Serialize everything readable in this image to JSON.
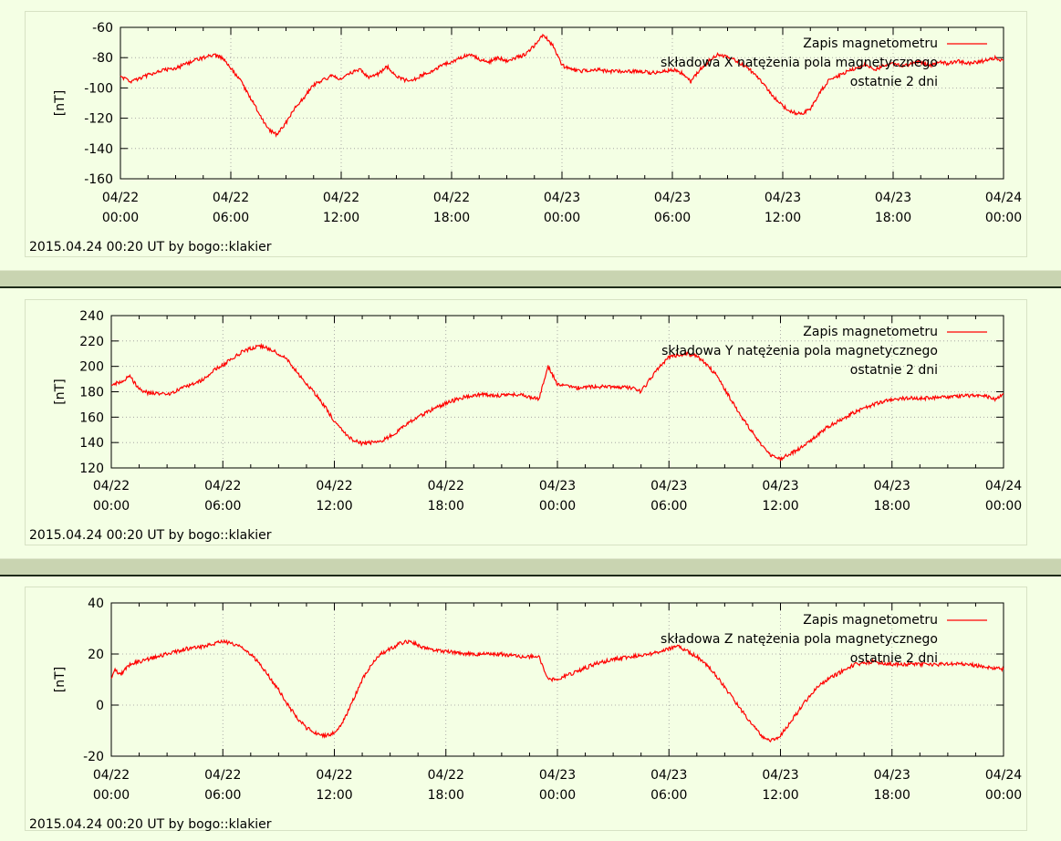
{
  "colors": {
    "background": "#f4ffe4",
    "series": "#ff0000",
    "grid": "#999999",
    "separator": "#c9d4b1"
  },
  "credit": "2015.04.24  00:20 UT  by  bogo::klakier",
  "x_tick_dates": [
    "04/22",
    "04/22",
    "04/22",
    "04/22",
    "04/23",
    "04/23",
    "04/23",
    "04/23",
    "04/24"
  ],
  "x_tick_times": [
    "00:00",
    "06:00",
    "12:00",
    "18:00",
    "00:00",
    "06:00",
    "12:00",
    "18:00",
    "00:00"
  ],
  "chart_data": [
    {
      "type": "line",
      "ylabel": "[nT]",
      "ylim": [
        -160,
        -60
      ],
      "yticks": [
        "-60",
        "-80",
        "-100",
        "-120",
        "-140",
        "-160"
      ],
      "legend": [
        "Zapis magnetometru",
        "składowa X natężenia pola magnetycznego",
        "ostatnie 2 dni"
      ],
      "series": [
        {
          "name": "Zapis magnetometru",
          "x": [
            0,
            0.5,
            1,
            2,
            3,
            4,
            4.5,
            5,
            5.5,
            6,
            6.5,
            7,
            7.5,
            8,
            8.5,
            9,
            9.5,
            10,
            10.5,
            11,
            11.5,
            12,
            12.5,
            13,
            13.5,
            14,
            14.5,
            15,
            15.5,
            16,
            16.5,
            17,
            17.5,
            18,
            18.5,
            19,
            19.5,
            20,
            20.5,
            21,
            21.5,
            22,
            22.5,
            23,
            23.5,
            24,
            24.5,
            25,
            25.5,
            26,
            26.5,
            27,
            27.5,
            28,
            29,
            30,
            30.5,
            31,
            31.5,
            32,
            32.5,
            33,
            33.5,
            34,
            34.5,
            35,
            35.5,
            36,
            36.5,
            37,
            37.5,
            38,
            38.5,
            39,
            39.5,
            40,
            40.5,
            41,
            41.5,
            42,
            42.5,
            43,
            43.5,
            44,
            44.5,
            45,
            45.5,
            46,
            46.5,
            47,
            47.5,
            48
          ],
          "y": [
            -92,
            -96,
            -94,
            -89,
            -87,
            -82,
            -80,
            -78,
            -80,
            -87,
            -95,
            -105,
            -116,
            -127,
            -131,
            -123,
            -113,
            -106,
            -98,
            -95,
            -92,
            -94,
            -90,
            -88,
            -93,
            -91,
            -86,
            -92,
            -95,
            -94,
            -91,
            -89,
            -85,
            -83,
            -80,
            -78,
            -81,
            -83,
            -80,
            -82,
            -80,
            -78,
            -72,
            -65,
            -72,
            -85,
            -88,
            -89,
            -88,
            -88,
            -89,
            -89,
            -89,
            -89,
            -90,
            -88,
            -90,
            -96,
            -88,
            -82,
            -78,
            -80,
            -82,
            -86,
            -91,
            -98,
            -106,
            -112,
            -116,
            -117,
            -114,
            -103,
            -95,
            -92,
            -89,
            -87,
            -84,
            -88,
            -85,
            -84,
            -86,
            -84,
            -83,
            -85,
            -83,
            -84,
            -82,
            -84,
            -83,
            -82,
            -80,
            -82
          ]
        }
      ]
    },
    {
      "type": "line",
      "ylabel": "[nT]",
      "ylim": [
        120,
        240
      ],
      "yticks": [
        "240",
        "220",
        "200",
        "180",
        "160",
        "140",
        "120"
      ],
      "legend": [
        "Zapis magnetometru",
        "składowa Y natężenia pola magnetycznego",
        "ostatnie 2 dni"
      ],
      "series": [
        {
          "name": "Zapis magnetometru",
          "x": [
            0,
            0.5,
            1,
            1.5,
            2,
            3,
            4,
            5,
            5.5,
            6,
            6.5,
            7,
            7.5,
            8,
            8.5,
            9,
            9.5,
            10,
            10.5,
            11,
            11.5,
            12,
            12.5,
            13,
            13.5,
            14,
            14.5,
            15,
            15.5,
            16,
            17,
            18,
            19,
            20,
            21,
            22,
            22.5,
            23,
            23.5,
            24,
            25,
            26,
            27,
            28,
            28.5,
            29,
            29.5,
            30,
            30.5,
            31,
            31.5,
            32,
            32.5,
            33,
            33.5,
            34,
            34.5,
            35,
            35.5,
            36,
            36.5,
            37,
            37.5,
            38,
            38.5,
            39,
            39.5,
            40,
            41,
            42,
            43,
            44,
            45,
            46,
            47,
            47.5,
            48
          ],
          "y": [
            185,
            188,
            192,
            182,
            179,
            178,
            184,
            190,
            197,
            201,
            206,
            211,
            214,
            216,
            214,
            210,
            205,
            195,
            186,
            178,
            168,
            157,
            148,
            142,
            139,
            140,
            141,
            145,
            150,
            156,
            164,
            171,
            176,
            178,
            177,
            178,
            176,
            174,
            200,
            186,
            183,
            184,
            184,
            183,
            180,
            190,
            200,
            207,
            209,
            210,
            208,
            202,
            194,
            182,
            170,
            158,
            148,
            138,
            130,
            127,
            131,
            135,
            140,
            146,
            152,
            156,
            160,
            164,
            170,
            174,
            175,
            175,
            176,
            177,
            177,
            174,
            178
          ]
        }
      ]
    },
    {
      "type": "line",
      "ylabel": "[nT]",
      "ylim": [
        -20,
        40
      ],
      "yticks": [
        "40",
        "20",
        "0",
        "-20"
      ],
      "legend": [
        "Zapis magnetometru",
        "składowa Z natężenia pola magnetycznego",
        "ostatnie 2 dni"
      ],
      "series": [
        {
          "name": "Zapis magnetometru",
          "x": [
            0,
            0.2,
            0.5,
            1,
            2,
            3,
            4,
            5,
            6,
            6.5,
            7,
            7.5,
            8,
            8.5,
            9,
            9.5,
            10,
            10.5,
            11,
            11.5,
            12,
            12.5,
            13,
            13.5,
            14,
            14.5,
            15,
            15.5,
            16,
            17,
            18,
            19,
            20,
            21,
            22,
            23,
            23.5,
            24,
            25,
            26,
            27,
            28,
            29,
            30,
            30.5,
            31,
            31.5,
            32,
            32.5,
            33,
            33.5,
            34,
            34.5,
            35,
            35.5,
            36,
            36.5,
            37,
            37.5,
            38,
            38.5,
            39,
            39.5,
            40,
            41,
            42,
            43,
            44,
            45,
            46,
            47,
            48
          ],
          "y": [
            10,
            14,
            12,
            16,
            18,
            20,
            22,
            23,
            25,
            24,
            23,
            20,
            16,
            11,
            6,
            0,
            -5,
            -9,
            -11,
            -12,
            -11,
            -6,
            2,
            10,
            16,
            20,
            22,
            24,
            25,
            22,
            21,
            20,
            20,
            20,
            19,
            19,
            10,
            10,
            13,
            16,
            18,
            19,
            20,
            22,
            23,
            21,
            19,
            16,
            12,
            7,
            2,
            -3,
            -8,
            -12,
            -14,
            -12,
            -7,
            -2,
            3,
            7,
            10,
            12,
            14,
            16,
            17,
            16,
            16,
            16,
            16,
            16,
            15,
            14
          ]
        }
      ]
    }
  ]
}
